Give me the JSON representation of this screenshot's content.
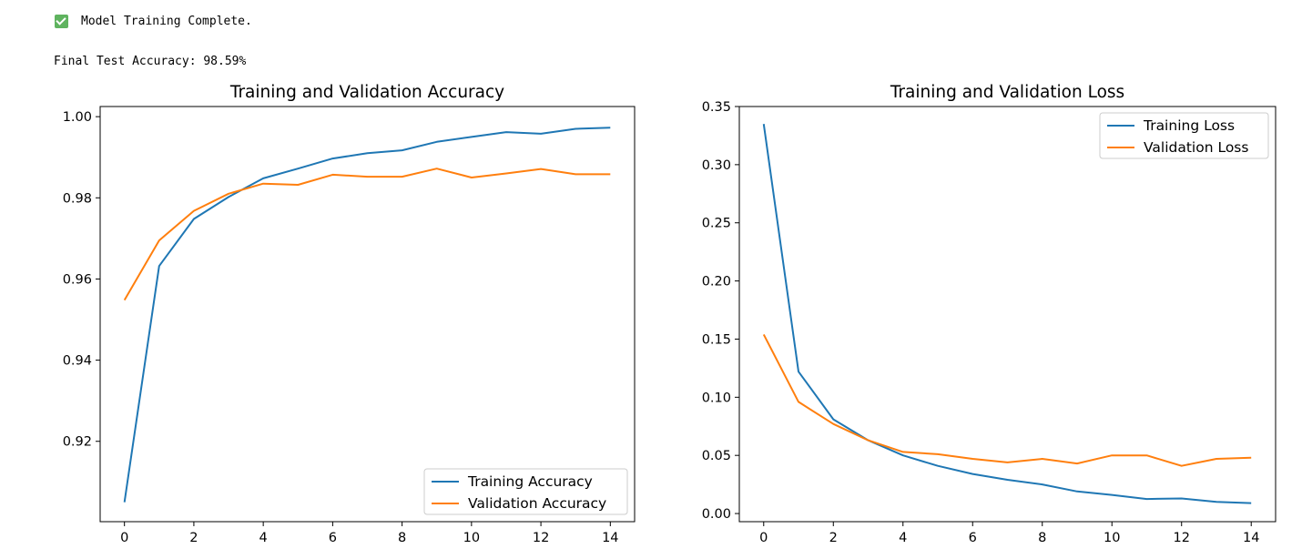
{
  "output": {
    "status_icon": "check-icon",
    "status_text": "Model Training Complete.",
    "accuracy_text": "Final Test Accuracy: 98.59%"
  },
  "colors": {
    "series1": "#1f77b4",
    "series2": "#ff7f0e"
  },
  "chart_data": [
    {
      "type": "line",
      "title": "Training and Validation Accuracy",
      "xlabel": "",
      "ylabel": "",
      "xlim": [
        -0.7,
        14.7
      ],
      "ylim": [
        0.9002,
        1.0025
      ],
      "xticks": [
        0,
        2,
        4,
        6,
        8,
        10,
        12,
        14
      ],
      "yticks": [
        0.92,
        0.94,
        0.96,
        0.98,
        1.0
      ],
      "ytick_labels": [
        "0.92",
        "0.94",
        "0.96",
        "0.98",
        "1.00"
      ],
      "grid": false,
      "legend_position": "lower-right",
      "x": [
        0,
        1,
        2,
        3,
        4,
        5,
        6,
        7,
        8,
        9,
        10,
        11,
        12,
        13,
        14
      ],
      "series": [
        {
          "name": "Training Accuracy",
          "values": [
            0.905,
            0.9632,
            0.9748,
            0.9802,
            0.9848,
            0.9872,
            0.9897,
            0.991,
            0.9917,
            0.9938,
            0.995,
            0.9962,
            0.9958,
            0.997,
            0.9973
          ]
        },
        {
          "name": "Validation Accuracy",
          "values": [
            0.9548,
            0.9695,
            0.9768,
            0.981,
            0.9835,
            0.9832,
            0.9857,
            0.9852,
            0.9852,
            0.9872,
            0.985,
            0.986,
            0.9871,
            0.9858,
            0.9858
          ]
        }
      ]
    },
    {
      "type": "line",
      "title": "Training and Validation Loss",
      "xlabel": "",
      "ylabel": "",
      "xlim": [
        -0.7,
        14.7
      ],
      "ylim": [
        -0.007,
        0.35
      ],
      "xticks": [
        0,
        2,
        4,
        6,
        8,
        10,
        12,
        14
      ],
      "yticks": [
        0.0,
        0.05,
        0.1,
        0.15,
        0.2,
        0.25,
        0.3,
        0.35
      ],
      "ytick_labels": [
        "0.00",
        "0.05",
        "0.10",
        "0.15",
        "0.20",
        "0.25",
        "0.30",
        "0.35"
      ],
      "grid": false,
      "legend_position": "upper-right",
      "x": [
        0,
        1,
        2,
        3,
        4,
        5,
        6,
        7,
        8,
        9,
        10,
        11,
        12,
        13,
        14
      ],
      "series": [
        {
          "name": "Training Loss",
          "values": [
            0.335,
            0.122,
            0.081,
            0.063,
            0.05,
            0.041,
            0.034,
            0.029,
            0.025,
            0.019,
            0.016,
            0.0125,
            0.013,
            0.01,
            0.009
          ]
        },
        {
          "name": "Validation Loss",
          "values": [
            0.154,
            0.096,
            0.077,
            0.063,
            0.053,
            0.051,
            0.047,
            0.044,
            0.047,
            0.043,
            0.05,
            0.05,
            0.041,
            0.047,
            0.048
          ]
        }
      ]
    }
  ]
}
